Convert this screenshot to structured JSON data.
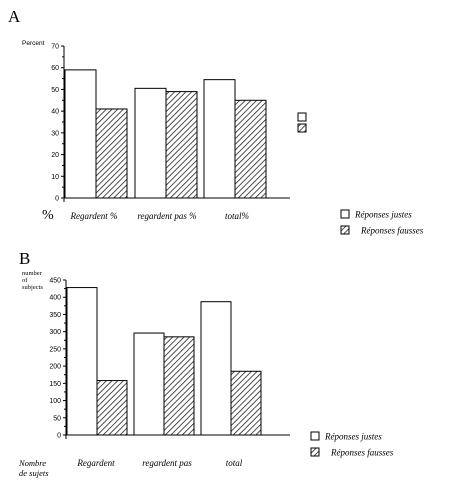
{
  "chart_data": [
    {
      "type": "bar",
      "panel_label": "A",
      "ylabel": "Percent",
      "corner_label": "%",
      "ylim": [
        0,
        70
      ],
      "yticks": [
        0,
        10,
        20,
        30,
        40,
        50,
        60,
        70
      ],
      "categories": [
        "Regardent %",
        "regardent pas %",
        "total%"
      ],
      "series": [
        {
          "name": "Réponses justes",
          "values": [
            59,
            50.5,
            54.5
          ]
        },
        {
          "name": "Réponses fausses",
          "values": [
            41,
            49,
            45
          ]
        }
      ],
      "legend_position": "bottom-right",
      "colors": {
        "justes": "#ffffff",
        "fausses": "#888888"
      }
    },
    {
      "type": "bar",
      "panel_label": "B",
      "ylabel_lines": [
        "number",
        "of",
        "subjects"
      ],
      "corner_label_lines": [
        "Nombre",
        "de sujets"
      ],
      "ylim": [
        0,
        450
      ],
      "yticks": [
        0,
        50,
        100,
        150,
        200,
        250,
        300,
        350,
        400,
        450
      ],
      "categories": [
        "Regardent",
        "regardent pas",
        "total"
      ],
      "series": [
        {
          "name": "Réponses justes",
          "values": [
            428,
            296,
            387
          ]
        },
        {
          "name": "Réponses fausses",
          "values": [
            158,
            285,
            185
          ]
        }
      ],
      "legend_position": "bottom-right",
      "colors": {
        "justes": "#ffffff",
        "fausses": "#888888"
      }
    }
  ]
}
